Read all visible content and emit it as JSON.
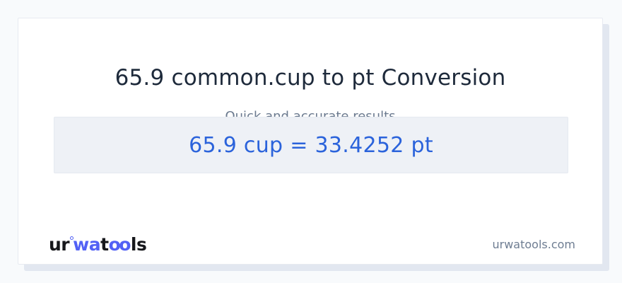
{
  "colors": {
    "page-bg": "#f8fafc",
    "card-bg": "#ffffff",
    "card-border": "#e7eaf1",
    "card-shadow": "#e2e7f0",
    "title": "#1e2a3b",
    "subtitle": "#6b7a8f",
    "result-bg": "#eef1f6",
    "result-border": "#e5e9f0",
    "result-text": "#2b63db",
    "logo-dark": "#17181c",
    "logo-blue": "#5261f5",
    "site-text": "#6e7d92"
  },
  "header": {
    "title": "65.9 common.cup to pt Conversion",
    "subtitle": "Quick and accurate results"
  },
  "result": {
    "text": "65.9 cup = 33.4252 pt"
  },
  "footer": {
    "logo": {
      "ur": "ur",
      "wa": "wa",
      "t": "t",
      "oo": "oo",
      "ls": "ls"
    },
    "site": "urwatools.com"
  }
}
